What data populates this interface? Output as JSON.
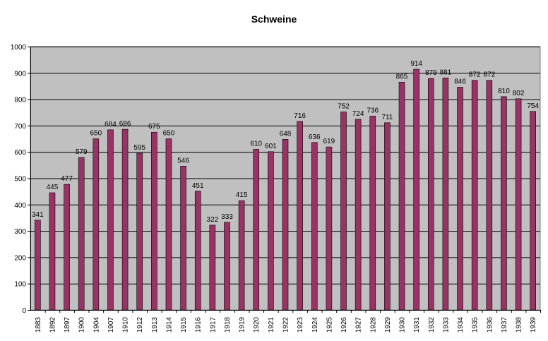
{
  "chart_data": {
    "type": "bar",
    "title": "Schweine",
    "xlabel": "",
    "ylabel": "",
    "categories": [
      "1883",
      "1892",
      "1897",
      "1900",
      "1904",
      "1907",
      "1910",
      "1912",
      "1913",
      "1914",
      "1915",
      "1916",
      "1917",
      "1918",
      "1919",
      "1920",
      "1921",
      "1922",
      "1923",
      "1924",
      "1925",
      "1926",
      "1927",
      "1928",
      "1929",
      "1930",
      "1931",
      "1932",
      "1933",
      "1934",
      "1935",
      "1936",
      "1937",
      "1938",
      "1939"
    ],
    "values": [
      341,
      445,
      477,
      579,
      650,
      684,
      686,
      595,
      675,
      650,
      546,
      451,
      322,
      333,
      415,
      610,
      601,
      648,
      716,
      636,
      619,
      752,
      724,
      736,
      711,
      865,
      914,
      879,
      881,
      846,
      872,
      872,
      810,
      802,
      754
    ],
    "ylim": [
      0,
      1000
    ],
    "yticks": [
      0,
      100,
      200,
      300,
      400,
      500,
      600,
      700,
      800,
      900,
      1000
    ],
    "grid": true,
    "legend": "none",
    "colors": {
      "bar_fill": "#993366",
      "bar_stroke": "#000000",
      "plot_background": "#c0c0c0",
      "grid": "#000000"
    }
  }
}
